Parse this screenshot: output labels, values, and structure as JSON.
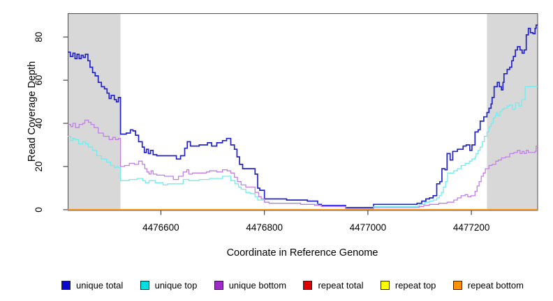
{
  "chart_data": {
    "type": "line",
    "step": true,
    "title": "",
    "xlabel": "Coordinate in Reference Genome",
    "ylabel": "Read Coverage Depth",
    "xlim": [
      4476420,
      4477328
    ],
    "ylim": [
      0,
      91
    ],
    "x_ticks": [
      4476600,
      4476800,
      4477000,
      4477200
    ],
    "y_ticks": [
      0,
      20,
      40,
      60,
      80
    ],
    "grid": false,
    "legend_position": "bottom",
    "plot_border_color": "#4d4d4d",
    "shaded_regions": [
      {
        "x0": 4476420,
        "x1": 4476522,
        "color": "#d8d8d8"
      },
      {
        "x0": 4477230,
        "x1": 4477328,
        "color": "#d8d8d8"
      }
    ],
    "series": [
      {
        "name": "unique total",
        "color": "#2222cc",
        "legend_color": "#0a0acd",
        "width": 1.7,
        "points": [
          [
            4476420,
            73
          ],
          [
            4476425,
            71
          ],
          [
            4476430,
            72.5
          ],
          [
            4476434,
            70
          ],
          [
            4476438,
            72
          ],
          [
            4476442,
            70
          ],
          [
            4476446,
            71.5
          ],
          [
            4476450,
            70.5
          ],
          [
            4476454,
            72
          ],
          [
            4476459,
            69
          ],
          [
            4476463,
            66
          ],
          [
            4476468,
            63.5
          ],
          [
            4476473,
            62
          ],
          [
            4476479,
            59
          ],
          [
            4476485,
            57
          ],
          [
            4476491,
            56
          ],
          [
            4476496,
            54
          ],
          [
            4476500,
            51.5
          ],
          [
            4476504,
            53
          ],
          [
            4476510,
            51
          ],
          [
            4476514,
            50
          ],
          [
            4476518,
            52
          ],
          [
            4476522,
            35
          ],
          [
            4476533,
            35.5
          ],
          [
            4476541,
            37
          ],
          [
            4476546,
            36.5
          ],
          [
            4476551,
            34.5
          ],
          [
            4476557,
            31.5
          ],
          [
            4476564,
            29
          ],
          [
            4476568,
            26.5
          ],
          [
            4476572,
            28
          ],
          [
            4476576,
            26
          ],
          [
            4476580,
            27.5
          ],
          [
            4476585,
            25.5
          ],
          [
            4476592,
            25
          ],
          [
            4476630,
            23.5
          ],
          [
            4476638,
            25
          ],
          [
            4476646,
            28.5
          ],
          [
            4476651,
            31.5
          ],
          [
            4476657,
            29.5
          ],
          [
            4476674,
            30
          ],
          [
            4476690,
            31
          ],
          [
            4476698,
            29.5
          ],
          [
            4476708,
            31
          ],
          [
            4476719,
            32
          ],
          [
            4476727,
            33
          ],
          [
            4476735,
            30
          ],
          [
            4476742,
            28
          ],
          [
            4476747,
            24.5
          ],
          [
            4476752,
            21
          ],
          [
            4476758,
            19
          ],
          [
            4476782,
            16.5
          ],
          [
            4476787,
            10
          ],
          [
            4476791,
            9
          ],
          [
            4476800,
            5
          ],
          [
            4476843,
            4.5
          ],
          [
            4476883,
            4
          ],
          [
            4476903,
            2.5
          ],
          [
            4476910,
            2
          ],
          [
            4476957,
            1
          ],
          [
            4477011,
            2.5
          ],
          [
            4477095,
            3
          ],
          [
            4477104,
            4
          ],
          [
            4477112,
            5
          ],
          [
            4477119,
            5.5
          ],
          [
            4477126,
            6.5
          ],
          [
            4477133,
            12
          ],
          [
            4477139,
            13
          ],
          [
            4477143,
            19
          ],
          [
            4477149,
            18.5
          ],
          [
            4477153,
            26
          ],
          [
            4477159,
            23
          ],
          [
            4477164,
            27
          ],
          [
            4477173,
            28
          ],
          [
            4477184,
            29.5
          ],
          [
            4477190,
            30
          ],
          [
            4477197,
            27.5
          ],
          [
            4477201,
            30
          ],
          [
            4477207,
            36
          ],
          [
            4477213,
            37
          ],
          [
            4477217,
            41
          ],
          [
            4477224,
            43
          ],
          [
            4477230,
            45
          ],
          [
            4477234,
            47
          ],
          [
            4477238,
            49
          ],
          [
            4477240,
            52
          ],
          [
            4477244,
            57
          ],
          [
            4477250,
            59
          ],
          [
            4477254,
            57
          ],
          [
            4477258,
            55.5
          ],
          [
            4477261,
            59
          ],
          [
            4477263,
            63
          ],
          [
            4477269,
            65
          ],
          [
            4477274,
            66
          ],
          [
            4477278,
            69
          ],
          [
            4477281,
            71
          ],
          [
            4477285,
            74
          ],
          [
            4477289,
            75.5
          ],
          [
            4477294,
            74
          ],
          [
            4477298,
            72.5
          ],
          [
            4477302,
            74
          ],
          [
            4477306,
            81
          ],
          [
            4477310,
            84
          ],
          [
            4477314,
            82
          ],
          [
            4477319,
            81.5
          ],
          [
            4477323,
            84
          ],
          [
            4477325,
            85.5
          ]
        ]
      },
      {
        "name": "unique top",
        "color": "#72eded",
        "legend_color": "#00dede",
        "width": 1.3,
        "points": [
          [
            4476420,
            34
          ],
          [
            4476426,
            32
          ],
          [
            4476430,
            33
          ],
          [
            4476434,
            32.5
          ],
          [
            4476441,
            30.5
          ],
          [
            4476449,
            31.5
          ],
          [
            4476454,
            30.5
          ],
          [
            4476460,
            29
          ],
          [
            4476468,
            27.5
          ],
          [
            4476476,
            25
          ],
          [
            4476485,
            23.5
          ],
          [
            4476495,
            22
          ],
          [
            4476503,
            20.5
          ],
          [
            4476510,
            19.5
          ],
          [
            4476514,
            20
          ],
          [
            4476518,
            19.5
          ],
          [
            4476522,
            13.5
          ],
          [
            4476539,
            14
          ],
          [
            4476554,
            14.5
          ],
          [
            4476565,
            13.5
          ],
          [
            4476570,
            12.5
          ],
          [
            4476577,
            13.5
          ],
          [
            4476589,
            12.5
          ],
          [
            4476604,
            11.5
          ],
          [
            4476613,
            12
          ],
          [
            4476643,
            14
          ],
          [
            4476654,
            13.5
          ],
          [
            4476674,
            14
          ],
          [
            4476694,
            14.5
          ],
          [
            4476719,
            15.5
          ],
          [
            4476735,
            13.5
          ],
          [
            4476743,
            12
          ],
          [
            4476750,
            10.5
          ],
          [
            4476755,
            9.5
          ],
          [
            4476764,
            8
          ],
          [
            4476773,
            7.5
          ],
          [
            4476782,
            6
          ],
          [
            4476787,
            4.5
          ],
          [
            4476800,
            3.5
          ],
          [
            4476809,
            3
          ],
          [
            4476870,
            2.5
          ],
          [
            4476903,
            2
          ],
          [
            4476910,
            1.5
          ],
          [
            4476957,
            0.5
          ],
          [
            4477011,
            1.5
          ],
          [
            4477099,
            2.5
          ],
          [
            4477110,
            3.5
          ],
          [
            4477119,
            4
          ],
          [
            4477126,
            4.5
          ],
          [
            4477133,
            5.5
          ],
          [
            4477138,
            6.5
          ],
          [
            4477142,
            8
          ],
          [
            4477146,
            10.5
          ],
          [
            4477150,
            13
          ],
          [
            4477154,
            17
          ],
          [
            4477166,
            18
          ],
          [
            4477173,
            19
          ],
          [
            4477180,
            20.5
          ],
          [
            4477188,
            21.5
          ],
          [
            4477196,
            22.5
          ],
          [
            4477201,
            23.5
          ],
          [
            4477207,
            24.5
          ],
          [
            4477209,
            26
          ],
          [
            4477213,
            27.5
          ],
          [
            4477217,
            29
          ],
          [
            4477221,
            31.5
          ],
          [
            4477225,
            34
          ],
          [
            4477230,
            36
          ],
          [
            4477234,
            38.5
          ],
          [
            4477238,
            40
          ],
          [
            4477242,
            42.5
          ],
          [
            4477246,
            43.5
          ],
          [
            4477248,
            45
          ],
          [
            4477251,
            43.5
          ],
          [
            4477255,
            45.5
          ],
          [
            4477259,
            46.5
          ],
          [
            4477263,
            47
          ],
          [
            4477269,
            48
          ],
          [
            4477274,
            48.5
          ],
          [
            4477279,
            46.5
          ],
          [
            4477285,
            49.5
          ],
          [
            4477292,
            48
          ],
          [
            4477297,
            51
          ],
          [
            4477304,
            57
          ]
        ]
      },
      {
        "name": "unique bottom",
        "color": "#c27ee8",
        "legend_color": "#9d2bc8",
        "width": 1.3,
        "points": [
          [
            4476420,
            39.5
          ],
          [
            4476426,
            38.5
          ],
          [
            4476430,
            40
          ],
          [
            4476435,
            38
          ],
          [
            4476442,
            39.5
          ],
          [
            4476449,
            40
          ],
          [
            4476453,
            41.5
          ],
          [
            4476460,
            40.5
          ],
          [
            4476465,
            39.5
          ],
          [
            4476471,
            38
          ],
          [
            4476479,
            35.5
          ],
          [
            4476489,
            34
          ],
          [
            4476500,
            32.5
          ],
          [
            4476507,
            33.5
          ],
          [
            4476512,
            32.5
          ],
          [
            4476518,
            33
          ],
          [
            4476522,
            20
          ],
          [
            4476530,
            20.5
          ],
          [
            4476539,
            21.5
          ],
          [
            4476549,
            21
          ],
          [
            4476557,
            22.5
          ],
          [
            4476564,
            21
          ],
          [
            4476569,
            19
          ],
          [
            4476573,
            17.5
          ],
          [
            4476577,
            16.5
          ],
          [
            4476581,
            18
          ],
          [
            4476585,
            16.5
          ],
          [
            4476592,
            16
          ],
          [
            4476607,
            15.5
          ],
          [
            4476624,
            14
          ],
          [
            4476634,
            15.5
          ],
          [
            4476643,
            17.5
          ],
          [
            4476650,
            18.5
          ],
          [
            4476654,
            16.5
          ],
          [
            4476661,
            17
          ],
          [
            4476688,
            17.5
          ],
          [
            4476694,
            18
          ],
          [
            4476708,
            17.5
          ],
          [
            4476719,
            18.5
          ],
          [
            4476728,
            18
          ],
          [
            4476735,
            17
          ],
          [
            4476742,
            15
          ],
          [
            4476748,
            13
          ],
          [
            4476755,
            11.5
          ],
          [
            4476764,
            10.5
          ],
          [
            4476782,
            8
          ],
          [
            4476789,
            6
          ],
          [
            4476794,
            5
          ],
          [
            4476800,
            3.5
          ],
          [
            4476809,
            3
          ],
          [
            4476870,
            2.5
          ],
          [
            4476897,
            2
          ],
          [
            4476910,
            1.5
          ],
          [
            4476957,
            0.5
          ],
          [
            4477011,
            1
          ],
          [
            4477099,
            1.5
          ],
          [
            4477108,
            2
          ],
          [
            4477119,
            2.5
          ],
          [
            4477137,
            3
          ],
          [
            4477153,
            3.5
          ],
          [
            4477166,
            4.5
          ],
          [
            4477173,
            5.5
          ],
          [
            4477180,
            6.5
          ],
          [
            4477188,
            7
          ],
          [
            4477193,
            6
          ],
          [
            4477199,
            6.5
          ],
          [
            4477207,
            8.5
          ],
          [
            4477211,
            11
          ],
          [
            4477215,
            13
          ],
          [
            4477219,
            15.5
          ],
          [
            4477223,
            17
          ],
          [
            4477227,
            19
          ],
          [
            4477234,
            20.5
          ],
          [
            4477240,
            21
          ],
          [
            4477247,
            22.5
          ],
          [
            4477252,
            23
          ],
          [
            4477258,
            24
          ],
          [
            4477266,
            24.5
          ],
          [
            4477274,
            26
          ],
          [
            4477282,
            26.5
          ],
          [
            4477289,
            27.5
          ],
          [
            4477294,
            26
          ],
          [
            4477298,
            27
          ],
          [
            4477302,
            26
          ],
          [
            4477306,
            27.5
          ],
          [
            4477310,
            26.5
          ],
          [
            4477323,
            27
          ],
          [
            4477325,
            29.5
          ]
        ]
      },
      {
        "name": "repeat total",
        "color": "#e00000",
        "legend_color": "#e00000",
        "width": 1.2,
        "points": [
          [
            4476420,
            0
          ],
          [
            4477328,
            0
          ]
        ]
      },
      {
        "name": "repeat top",
        "color": "#ffff00",
        "legend_color": "#ffff00",
        "width": 1.2,
        "points": [
          [
            4476420,
            0
          ],
          [
            4477328,
            0
          ]
        ]
      },
      {
        "name": "repeat bottom",
        "color": "#ff8c00",
        "legend_color": "#ff9000",
        "width": 1.6,
        "points": [
          [
            4476420,
            0
          ],
          [
            4477328,
            0
          ]
        ]
      }
    ]
  }
}
